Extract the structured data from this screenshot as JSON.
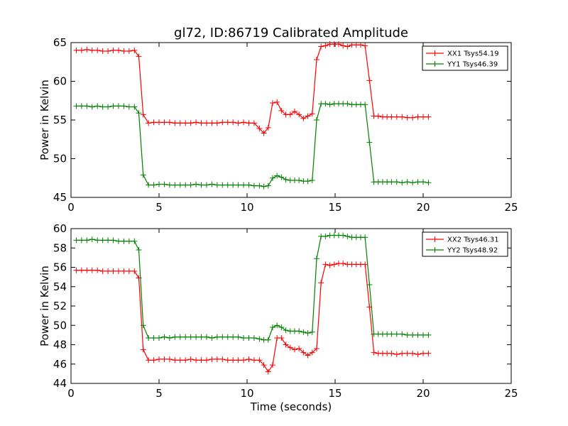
{
  "figure": {
    "title": "gl72, ID:86719 Calibrated Amplitude",
    "xlabel": "Time (seconds)"
  },
  "chart_data": [
    {
      "type": "line",
      "ylabel": "Power in Kelvin",
      "xlim": [
        0,
        25
      ],
      "ylim": [
        45,
        65
      ],
      "xticks": [
        "0",
        "5",
        "10",
        "15",
        "20",
        "25"
      ],
      "yticks": [
        "45",
        "50",
        "55",
        "60",
        "65"
      ],
      "grid": false,
      "legend_position": "top-right",
      "x": [
        0.3,
        0.6,
        0.9,
        1.2,
        1.5,
        1.8,
        2.1,
        2.4,
        2.7,
        3.0,
        3.3,
        3.6,
        3.85,
        4.1,
        4.4,
        4.7,
        5.0,
        5.3,
        5.6,
        5.9,
        6.2,
        6.5,
        6.8,
        7.1,
        7.4,
        7.7,
        8.0,
        8.3,
        8.6,
        8.9,
        9.2,
        9.5,
        9.8,
        10.1,
        10.4,
        10.7,
        10.95,
        11.2,
        11.45,
        11.7,
        11.95,
        12.2,
        12.45,
        12.7,
        12.95,
        13.2,
        13.45,
        13.7,
        13.95,
        14.2,
        14.45,
        14.7,
        14.95,
        15.2,
        15.45,
        15.7,
        15.95,
        16.2,
        16.45,
        16.7,
        16.95,
        17.2,
        17.45,
        17.7,
        17.95,
        18.2,
        18.5,
        18.8,
        19.1,
        19.4,
        19.7,
        20.0,
        20.3
      ],
      "series": [
        {
          "name": "XX1 Tsys54.19",
          "color": "#ff0000",
          "values": [
            64.0,
            64.0,
            64.1,
            64.0,
            64.0,
            63.9,
            63.9,
            64.0,
            64.0,
            63.9,
            63.9,
            64.0,
            63.2,
            55.7,
            54.6,
            54.7,
            54.7,
            54.7,
            54.7,
            54.6,
            54.6,
            54.6,
            54.6,
            54.7,
            54.6,
            54.6,
            54.6,
            54.6,
            54.7,
            54.7,
            54.7,
            54.6,
            54.7,
            54.6,
            54.6,
            53.9,
            53.3,
            54.0,
            57.2,
            57.3,
            56.2,
            55.7,
            55.7,
            56.1,
            55.7,
            55.2,
            55.5,
            55.8,
            62.8,
            64.5,
            64.6,
            64.8,
            64.8,
            64.8,
            64.6,
            64.5,
            64.7,
            64.7,
            64.7,
            64.6,
            60.1,
            55.5,
            55.5,
            55.4,
            55.4,
            55.4,
            55.4,
            55.4,
            55.3,
            55.3,
            55.4,
            55.4,
            55.4
          ]
        },
        {
          "name": "YY1 Tsys46.39",
          "color": "#008000",
          "values": [
            56.8,
            56.8,
            56.8,
            56.7,
            56.8,
            56.7,
            56.7,
            56.8,
            56.8,
            56.8,
            56.7,
            56.7,
            55.9,
            47.9,
            46.6,
            46.6,
            46.7,
            46.7,
            46.6,
            46.6,
            46.6,
            46.6,
            46.6,
            46.7,
            46.6,
            46.6,
            46.7,
            46.6,
            46.6,
            46.6,
            46.6,
            46.6,
            46.6,
            46.6,
            46.5,
            46.5,
            46.4,
            46.5,
            47.5,
            47.8,
            47.6,
            47.3,
            47.2,
            47.2,
            47.2,
            47.1,
            47.1,
            47.2,
            55.0,
            57.1,
            57.1,
            57.0,
            57.1,
            57.1,
            57.1,
            57.1,
            57.0,
            57.0,
            57.0,
            57.0,
            52.1,
            47.0,
            47.0,
            47.0,
            47.0,
            47.0,
            47.0,
            46.9,
            47.0,
            46.9,
            47.0,
            47.0,
            46.9
          ]
        }
      ]
    },
    {
      "type": "line",
      "ylabel": "Power in Kelvin",
      "xlabel": "Time (seconds)",
      "xlim": [
        0,
        25
      ],
      "ylim": [
        44,
        60
      ],
      "xticks": [
        "0",
        "5",
        "10",
        "15",
        "20",
        "25"
      ],
      "yticks": [
        "44",
        "46",
        "48",
        "50",
        "52",
        "54",
        "56",
        "58",
        "60"
      ],
      "grid": false,
      "legend_position": "top-right",
      "x": [
        0.3,
        0.6,
        0.9,
        1.2,
        1.5,
        1.8,
        2.1,
        2.4,
        2.7,
        3.0,
        3.3,
        3.6,
        3.85,
        4.1,
        4.4,
        4.7,
        5.0,
        5.3,
        5.6,
        5.9,
        6.2,
        6.5,
        6.8,
        7.1,
        7.4,
        7.7,
        8.0,
        8.3,
        8.6,
        8.9,
        9.2,
        9.5,
        9.8,
        10.1,
        10.4,
        10.7,
        10.95,
        11.2,
        11.45,
        11.7,
        11.95,
        12.2,
        12.45,
        12.7,
        12.95,
        13.2,
        13.45,
        13.7,
        13.95,
        14.2,
        14.45,
        14.7,
        14.95,
        15.2,
        15.45,
        15.7,
        15.95,
        16.2,
        16.45,
        16.7,
        16.95,
        17.2,
        17.45,
        17.7,
        17.95,
        18.2,
        18.5,
        18.8,
        19.1,
        19.4,
        19.7,
        20.0,
        20.3
      ],
      "series": [
        {
          "name": "XX2 Tsys46.31",
          "color": "#ff0000",
          "values": [
            55.7,
            55.7,
            55.7,
            55.7,
            55.7,
            55.6,
            55.6,
            55.6,
            55.6,
            55.6,
            55.6,
            55.6,
            54.9,
            47.5,
            46.4,
            46.4,
            46.5,
            46.5,
            46.5,
            46.4,
            46.4,
            46.4,
            46.5,
            46.4,
            46.4,
            46.4,
            46.5,
            46.5,
            46.5,
            46.4,
            46.4,
            46.4,
            46.4,
            46.5,
            46.4,
            46.4,
            45.9,
            45.2,
            45.9,
            48.7,
            48.7,
            48.0,
            47.7,
            47.5,
            47.6,
            47.2,
            46.9,
            47.2,
            47.6,
            54.4,
            56.3,
            56.2,
            56.3,
            56.4,
            56.4,
            56.3,
            56.3,
            56.3,
            56.3,
            56.3,
            51.9,
            47.2,
            47.1,
            47.1,
            47.1,
            47.1,
            47.0,
            47.1,
            47.1,
            47.1,
            47.0,
            47.1,
            47.1
          ]
        },
        {
          "name": "YY2 Tsys48.92",
          "color": "#008000",
          "values": [
            58.8,
            58.8,
            58.8,
            58.9,
            58.8,
            58.8,
            58.8,
            58.8,
            58.7,
            58.7,
            58.7,
            58.7,
            57.8,
            50.0,
            48.7,
            48.7,
            48.7,
            48.8,
            48.7,
            48.8,
            48.8,
            48.8,
            48.8,
            48.8,
            48.8,
            48.8,
            48.7,
            48.8,
            48.8,
            48.8,
            48.8,
            48.8,
            48.7,
            48.7,
            48.7,
            48.6,
            48.5,
            48.5,
            49.8,
            50.0,
            49.8,
            49.5,
            49.4,
            49.4,
            49.4,
            49.3,
            49.2,
            49.3,
            56.9,
            59.2,
            59.2,
            59.3,
            59.3,
            59.3,
            59.3,
            59.2,
            59.1,
            59.1,
            59.1,
            59.1,
            54.2,
            49.1,
            49.1,
            49.1,
            49.1,
            49.1,
            49.1,
            49.1,
            49.0,
            49.0,
            49.0,
            49.0,
            49.0
          ]
        }
      ]
    }
  ]
}
